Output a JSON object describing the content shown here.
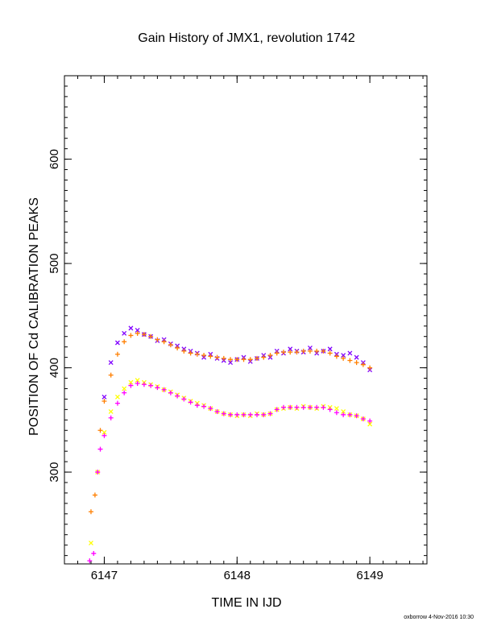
{
  "chart_data": {
    "type": "scatter",
    "title": "Gain History of JMX1, revolution 1742",
    "xlabel": "TIME IN IJD",
    "ylabel": "POSITION OF Cd CALIBRATION PEAKS",
    "footer": "oxborrow  4-Nov-2016 10:30",
    "xlim": [
      6146.7,
      6149.43
    ],
    "ylim": [
      212,
      680
    ],
    "xticks": [
      6147,
      6148,
      6149
    ],
    "xtick_labels": [
      "6147",
      "6148",
      "6149"
    ],
    "yticks": [
      300,
      400,
      500,
      600
    ],
    "ytick_labels": [
      "300",
      "400",
      "500",
      "600"
    ],
    "grid": false,
    "series": [
      {
        "color": "#8000ff",
        "marker": "x",
        "x": [
          6147.0,
          6147.05,
          6147.1,
          6147.15,
          6147.2,
          6147.25,
          6147.3,
          6147.35,
          6147.4,
          6147.45,
          6147.5,
          6147.55,
          6147.6,
          6147.65,
          6147.7,
          6147.75,
          6147.8,
          6147.85,
          6147.9,
          6147.95,
          6148.0,
          6148.05,
          6148.1,
          6148.15,
          6148.2,
          6148.25,
          6148.3,
          6148.35,
          6148.4,
          6148.45,
          6148.5,
          6148.55,
          6148.6,
          6148.65,
          6148.7,
          6148.75,
          6148.8,
          6148.85,
          6148.9,
          6148.95,
          6149.0
        ],
        "y": [
          372,
          405,
          424,
          433,
          438,
          436,
          432,
          430,
          426,
          427,
          423,
          421,
          418,
          416,
          414,
          410,
          413,
          409,
          407,
          405,
          408,
          410,
          406,
          409,
          412,
          410,
          416,
          414,
          418,
          416,
          415,
          419,
          414,
          416,
          418,
          413,
          412,
          414,
          410,
          405,
          398
        ]
      },
      {
        "color": "#ff7f00",
        "marker": "+",
        "x": [
          6146.9,
          6146.93,
          6146.97,
          6147.0,
          6147.05,
          6147.1,
          6147.15,
          6147.2,
          6147.25,
          6147.3,
          6147.35,
          6147.4,
          6147.45,
          6147.5,
          6147.55,
          6147.6,
          6147.65,
          6147.7,
          6147.75,
          6147.8,
          6147.85,
          6147.9,
          6147.95,
          6148.0,
          6148.05,
          6148.1,
          6148.15,
          6148.2,
          6148.25,
          6148.3,
          6148.35,
          6148.4,
          6148.45,
          6148.5,
          6148.55,
          6148.6,
          6148.65,
          6148.7,
          6148.75,
          6148.8,
          6148.85,
          6148.9,
          6148.95,
          6149.0
        ],
        "y": [
          262,
          278,
          340,
          368,
          393,
          413,
          425,
          431,
          433,
          432,
          430,
          427,
          425,
          422,
          419,
          416,
          414,
          413,
          412,
          411,
          410,
          409,
          408,
          408,
          408,
          408,
          409,
          410,
          412,
          414,
          415,
          415,
          415,
          416,
          416,
          416,
          416,
          414,
          411,
          409,
          407,
          405,
          403,
          400
        ]
      },
      {
        "color": "#ffff00",
        "marker": "x",
        "x": [
          6146.9,
          6146.95,
          6147.0,
          6147.05,
          6147.1,
          6147.15,
          6147.2,
          6147.25,
          6147.3,
          6147.35,
          6147.4,
          6147.45,
          6147.5,
          6147.55,
          6147.6,
          6147.65,
          6147.7,
          6147.75,
          6147.8,
          6147.85,
          6147.9,
          6147.95,
          6148.0,
          6148.05,
          6148.1,
          6148.15,
          6148.2,
          6148.25,
          6148.3,
          6148.35,
          6148.4,
          6148.45,
          6148.5,
          6148.55,
          6148.6,
          6148.65,
          6148.7,
          6148.75,
          6148.8,
          6148.85,
          6148.9,
          6148.95,
          6149.0
        ],
        "y": [
          232,
          300,
          338,
          358,
          372,
          380,
          386,
          388,
          386,
          384,
          382,
          379,
          377,
          374,
          371,
          368,
          366,
          364,
          361,
          358,
          356,
          355,
          354,
          355,
          354,
          356,
          355,
          356,
          360,
          361,
          362,
          361,
          363,
          362,
          361,
          363,
          362,
          361,
          358,
          355,
          354,
          351,
          346
        ]
      },
      {
        "color": "#ff00ff",
        "marker": "+",
        "x": [
          6146.89,
          6146.92,
          6146.95,
          6146.97,
          6147.0,
          6147.05,
          6147.1,
          6147.15,
          6147.2,
          6147.25,
          6147.3,
          6147.35,
          6147.4,
          6147.45,
          6147.5,
          6147.55,
          6147.6,
          6147.65,
          6147.7,
          6147.75,
          6147.8,
          6147.85,
          6147.9,
          6147.95,
          6148.0,
          6148.05,
          6148.1,
          6148.15,
          6148.2,
          6148.25,
          6148.3,
          6148.35,
          6148.4,
          6148.45,
          6148.5,
          6148.55,
          6148.6,
          6148.65,
          6148.7,
          6148.75,
          6148.8,
          6148.85,
          6148.9,
          6148.95,
          6149.0
        ],
        "y": [
          215,
          222,
          300,
          322,
          335,
          352,
          366,
          376,
          383,
          385,
          384,
          383,
          381,
          379,
          376,
          373,
          370,
          367,
          364,
          363,
          361,
          358,
          356,
          355,
          355,
          355,
          355,
          355,
          355,
          356,
          360,
          362,
          362,
          362,
          362,
          362,
          362,
          362,
          360,
          357,
          355,
          355,
          354,
          351,
          349
        ]
      }
    ]
  }
}
